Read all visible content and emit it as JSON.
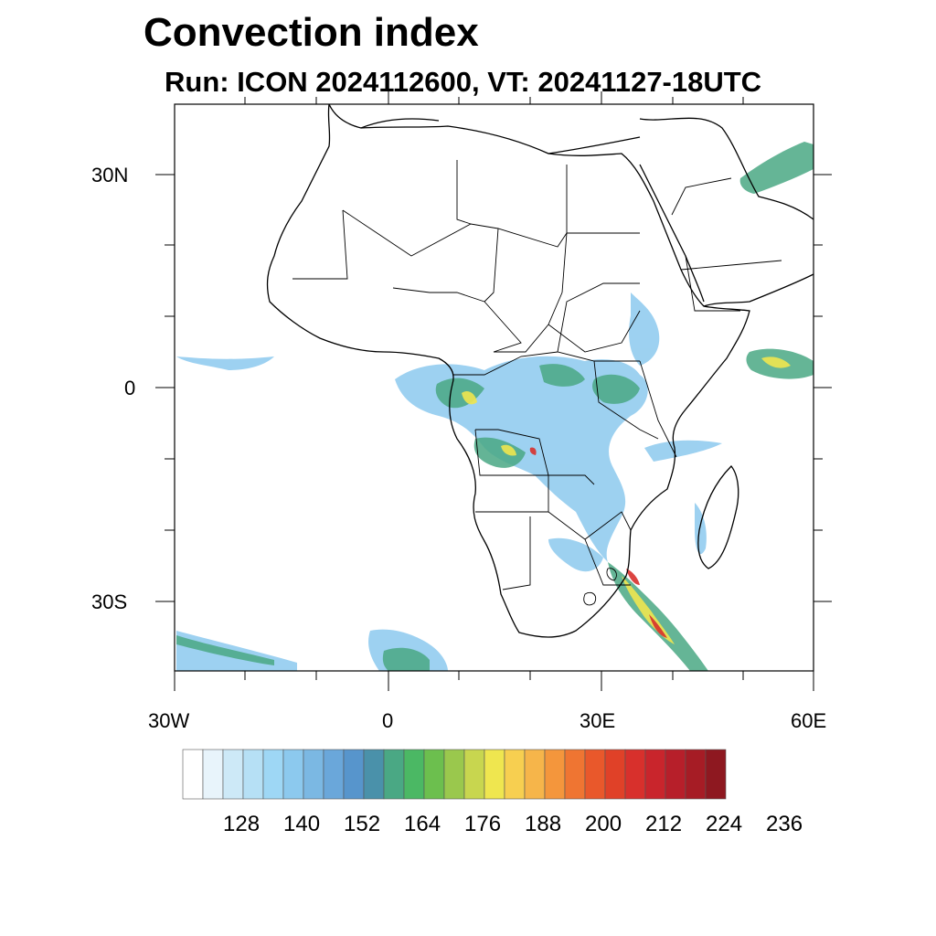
{
  "header": {
    "title": "Convection index",
    "subtitle": "Run: ICON 2024112600,  VT: 20241127-18UTC"
  },
  "map": {
    "region": "Africa",
    "lat_labels": [
      {
        "text": "30N",
        "lat": 30
      },
      {
        "text": "0",
        "lat": 0
      },
      {
        "text": "30S",
        "lat": -30
      }
    ],
    "lon_labels": [
      {
        "text": "30W",
        "lon": -30
      },
      {
        "text": "0",
        "lon": 0
      },
      {
        "text": "30E",
        "lon": 30
      },
      {
        "text": "60E",
        "lon": 60
      }
    ]
  },
  "colorbar": {
    "colors": [
      "#ffffff",
      "#e8f4fb",
      "#cde9f7",
      "#b6e0f5",
      "#9ed7f5",
      "#8cc9ee",
      "#7bb8e3",
      "#6aa7da",
      "#5795cc",
      "#4a91aa",
      "#4aa884",
      "#4bb864",
      "#6cbf4e",
      "#9ac84d",
      "#c8d64f",
      "#efe64f",
      "#f7cf50",
      "#f6b54a",
      "#f4963c",
      "#ef7532",
      "#e9582b",
      "#e04128",
      "#d8302c",
      "#c9252c",
      "#b71f2a",
      "#a61c25",
      "#8e1820"
    ],
    "tick_labels": [
      "128",
      "140",
      "152",
      "164",
      "176",
      "188",
      "200",
      "212",
      "224",
      "236"
    ]
  }
}
